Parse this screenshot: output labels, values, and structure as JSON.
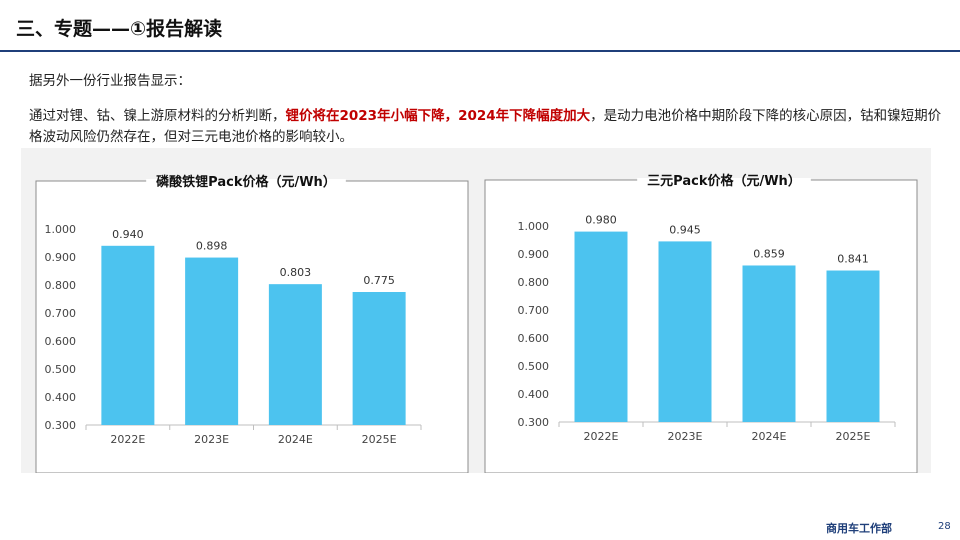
{
  "slide": {
    "title": "三、专题——①报告解读",
    "intro": "据另外一份行业报告显示：",
    "paragraph": {
      "part1": "通过对锂、钴、镍上游原材料的分析判断，",
      "highlight1": "锂价将在2023年小幅下降",
      "sep": "，",
      "highlight2": "2024年下降幅度加大",
      "part2": "，是动力电池价格中期阶段下降的核心原因，钴和镍短期价格波动风险仍然存在，但对三元电池价格的影响较小。"
    },
    "footer": {
      "dept": "商用车工作部",
      "page": "28"
    }
  },
  "colors": {
    "bar": "#4cc3ef",
    "title_rule": "#1f3f7a",
    "highlight": "#c00000"
  },
  "chart_data": [
    {
      "type": "bar",
      "title": "磷酸铁锂Pack价格（元/Wh）",
      "categories": [
        "2022E",
        "2023E",
        "2024E",
        "2025E"
      ],
      "values": [
        0.94,
        0.898,
        0.803,
        0.775
      ],
      "value_labels": [
        "0.940",
        "0.898",
        "0.803",
        "0.775"
      ],
      "ylim": [
        0.3,
        1.0
      ],
      "yticks": [
        "1.000",
        "0.900",
        "0.800",
        "0.700",
        "0.600",
        "0.500",
        "0.400",
        "0.300"
      ],
      "grid": false,
      "legend": "none"
    },
    {
      "type": "bar",
      "title": "三元Pack价格（元/Wh）",
      "categories": [
        "2022E",
        "2023E",
        "2024E",
        "2025E"
      ],
      "values": [
        0.98,
        0.945,
        0.859,
        0.841
      ],
      "value_labels": [
        "0.980",
        "0.945",
        "0.859",
        "0.841"
      ],
      "ylim": [
        0.3,
        1.0
      ],
      "yticks": [
        "1.000",
        "0.900",
        "0.800",
        "0.700",
        "0.600",
        "0.500",
        "0.400",
        "0.300"
      ],
      "grid": false,
      "legend": "none"
    }
  ]
}
